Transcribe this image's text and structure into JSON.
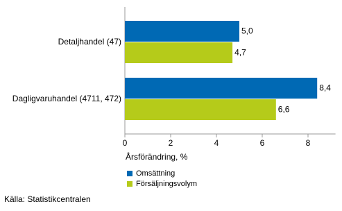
{
  "chart_data": {
    "type": "hbar",
    "categories": [
      "Detaljhandel (47)",
      "Dagligvaruhandel (4711, 472)"
    ],
    "series": [
      {
        "name": "Omsättning",
        "color": "#0069b4",
        "values": [
          5.0,
          8.4
        ],
        "value_labels": [
          "5,0",
          "8,4"
        ]
      },
      {
        "name": "Försäljningsvolym",
        "color": "#b5cb1a",
        "values": [
          4.7,
          6.6
        ],
        "value_labels": [
          "4,7",
          "6,6"
        ]
      }
    ],
    "xlabel": "Årsförändring, %",
    "xlim": [
      0,
      9.2
    ],
    "xticks": [
      0,
      2,
      4,
      6,
      8
    ],
    "grid": false,
    "source": "Källa: Statistikcentralen"
  }
}
